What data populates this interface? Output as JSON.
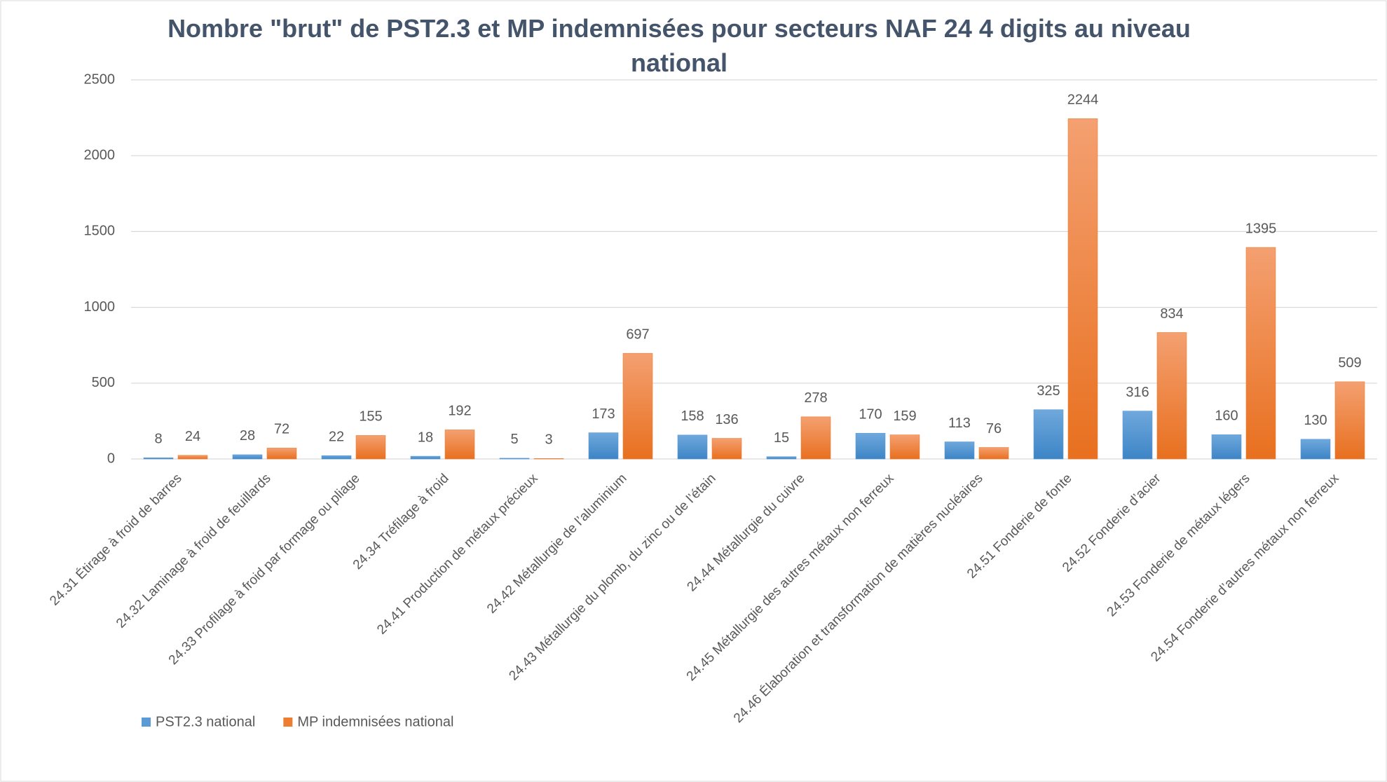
{
  "chart_data": {
    "type": "bar",
    "title": "Nombre \"brut\" de PST2.3 et MP indemnisées pour secteurs NAF 24 4 digits au niveau national",
    "categories": [
      "24.31 Étirage à froid de barres",
      "24.32 Laminage à froid de feuillards",
      "24.33 Profilage à froid par formage ou pliage",
      "24.34 Tréfilage à froid",
      "24.41 Production de métaux précieux",
      "24.42 Métallurgie de l’aluminium",
      "24.43 Métallurgie du plomb, du zinc ou de l’étain",
      "24.44 Métallurgie du cuivre",
      "24.45 Métallurgie des autres métaux non ferreux",
      "24.46 Élaboration et transformation de matières nucléaires",
      "24.51 Fonderie de fonte",
      "24.52 Fonderie d’acier",
      "24.53 Fonderie de métaux légers",
      "24.54 Fonderie d’autres métaux non ferreux"
    ],
    "series": [
      {
        "name": "PST2.3 national",
        "color": "#5b9bd5",
        "values": [
          8,
          28,
          22,
          18,
          5,
          173,
          158,
          15,
          170,
          113,
          325,
          316,
          160,
          130
        ]
      },
      {
        "name": "MP indemnisées national",
        "color": "#ed7d31",
        "values": [
          24,
          72,
          155,
          192,
          3,
          697,
          136,
          278,
          159,
          76,
          2244,
          834,
          1395,
          509
        ]
      }
    ],
    "ylim": [
      0,
      2500
    ],
    "yticks": [
      0,
      500,
      1000,
      1500,
      2000,
      2500
    ],
    "grid": true,
    "legend": "bottom-left"
  }
}
